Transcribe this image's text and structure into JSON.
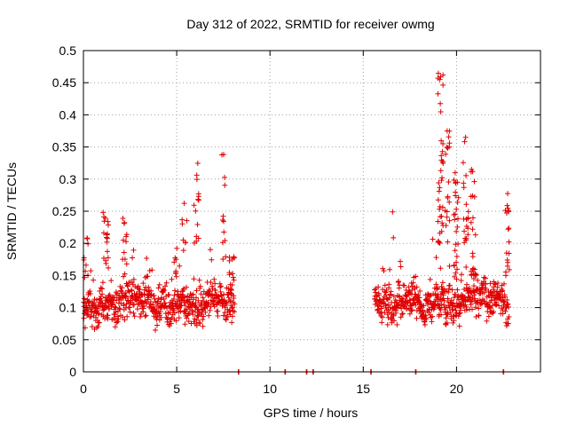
{
  "chart_data": {
    "type": "scatter",
    "title": "Day 312 of 2022, SRMTID for receiver owmg",
    "xlabel": "GPS time / hours",
    "ylabel": "SRMTID / TECUs",
    "xlim": [
      0,
      24.5
    ],
    "ylim": [
      0,
      0.5
    ],
    "xticks": [
      0,
      5,
      10,
      15,
      20
    ],
    "xtick_labels": [
      "0",
      "5",
      "10",
      "15",
      "20"
    ],
    "yticks": [
      0,
      0.05,
      0.1,
      0.15,
      0.2,
      0.25,
      0.3,
      0.35,
      0.4,
      0.45,
      0.5
    ],
    "ytick_labels": [
      "0",
      "0.05",
      "0.1",
      "0.15",
      "0.2",
      "0.25",
      "0.3",
      "0.35",
      "0.4",
      "0.45",
      "0.5"
    ],
    "grid": true,
    "marker": "+",
    "color": "#e00000",
    "series": [
      {
        "name": "SRMTID",
        "segments": [
          {
            "x_start": 0.0,
            "x_end": 8.1,
            "base": 0.105,
            "spread": 0.035,
            "count": 620
          },
          {
            "x_start": 15.6,
            "x_end": 22.8,
            "base": 0.11,
            "spread": 0.035,
            "count": 560
          }
        ],
        "bursts": [
          {
            "x": 0.1,
            "min": 0.15,
            "max": 0.21,
            "count": 10
          },
          {
            "x": 1.2,
            "min": 0.16,
            "max": 0.26,
            "count": 18
          },
          {
            "x": 2.2,
            "min": 0.15,
            "max": 0.25,
            "count": 10
          },
          {
            "x": 5.0,
            "min": 0.15,
            "max": 0.2,
            "count": 6
          },
          {
            "x": 5.4,
            "min": 0.18,
            "max": 0.27,
            "count": 8
          },
          {
            "x": 6.05,
            "min": 0.2,
            "max": 0.33,
            "count": 14
          },
          {
            "x": 7.55,
            "min": 0.15,
            "max": 0.36,
            "count": 12
          },
          {
            "x": 7.95,
            "min": 0.12,
            "max": 0.19,
            "count": 12
          },
          {
            "x": 16.6,
            "min": 0.2,
            "max": 0.25,
            "count": 2
          },
          {
            "x": 19.15,
            "min": 0.2,
            "max": 0.47,
            "count": 40
          },
          {
            "x": 19.5,
            "min": 0.2,
            "max": 0.38,
            "count": 18
          },
          {
            "x": 20.0,
            "min": 0.15,
            "max": 0.31,
            "count": 25
          },
          {
            "x": 20.5,
            "min": 0.2,
            "max": 0.37,
            "count": 20
          },
          {
            "x": 20.9,
            "min": 0.15,
            "max": 0.33,
            "count": 20
          },
          {
            "x": 22.7,
            "min": 0.15,
            "max": 0.29,
            "count": 18
          }
        ],
        "zero_points": [
          8.3,
          10.8,
          11.95,
          12.3,
          15.4,
          17.8,
          22.5
        ]
      }
    ]
  }
}
